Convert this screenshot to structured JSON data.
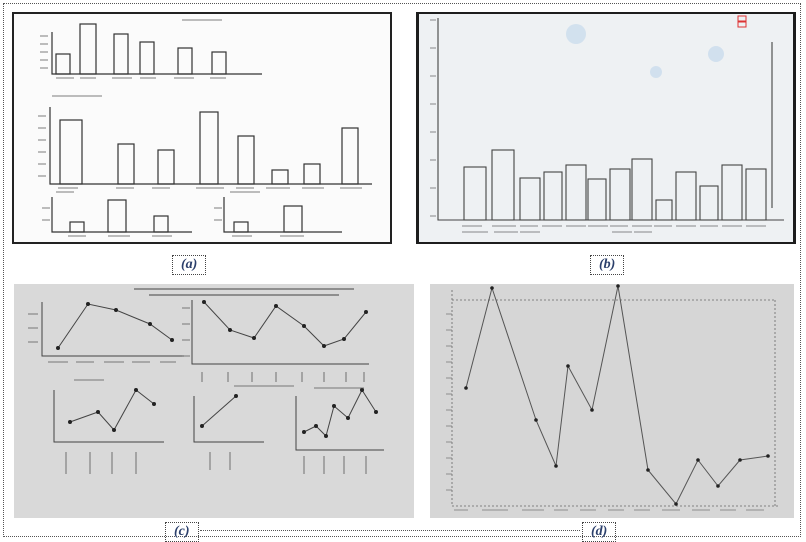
{
  "captions": {
    "a": "(a)",
    "b": "(b)",
    "c": "(c)",
    "d": "(d)"
  },
  "colors": {
    "panel_a_bg": "#fbfbfb",
    "panel_b_bg": "#eef1f3",
    "panel_c_bg": "#d9d9d9",
    "panel_d_bg": "#d6d6d6",
    "caption": "#2b3f6b",
    "ink": "#333333"
  }
}
